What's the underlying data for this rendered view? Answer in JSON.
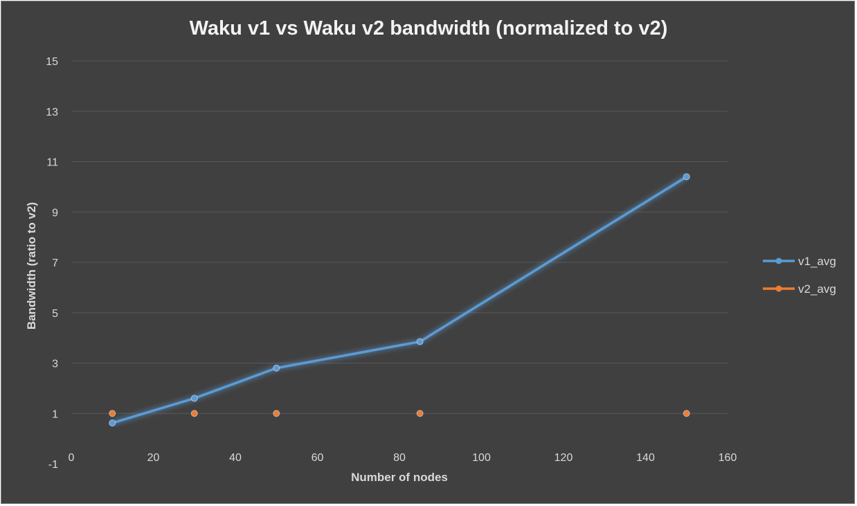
{
  "chart_data": {
    "type": "line",
    "title": "Waku v1 vs Waku v2 bandwidth (normalized to v2)",
    "xlabel": "Number of nodes",
    "ylabel": "Bandwidth (ratio to v2)",
    "xlim": [
      0,
      160
    ],
    "ylim": [
      -1,
      15
    ],
    "xticks": [
      "0",
      "20",
      "40",
      "60",
      "80",
      "100",
      "120",
      "140",
      "160"
    ],
    "yticks": [
      "-1",
      "1",
      "3",
      "5",
      "7",
      "9",
      "11",
      "13",
      "15"
    ],
    "grid": true,
    "legend": "right",
    "series": [
      {
        "name": "v1_avg",
        "color": "#5b9bd5",
        "points": [
          {
            "x": 10,
            "y": 0.62
          },
          {
            "x": 30,
            "y": 1.6
          },
          {
            "x": 50,
            "y": 2.8
          },
          {
            "x": 85,
            "y": 3.85
          },
          {
            "x": 150,
            "y": 10.4
          }
        ]
      },
      {
        "name": "v2_avg",
        "color": "#ed7d31",
        "points": [
          {
            "x": 10,
            "y": 1
          },
          {
            "x": 30,
            "y": 1
          },
          {
            "x": 50,
            "y": 1
          },
          {
            "x": 85,
            "y": 1
          },
          {
            "x": 150,
            "y": 1
          }
        ]
      }
    ]
  },
  "colors": {
    "background": "#404040",
    "gridline": "#595959",
    "text": "#d9d9d9"
  }
}
